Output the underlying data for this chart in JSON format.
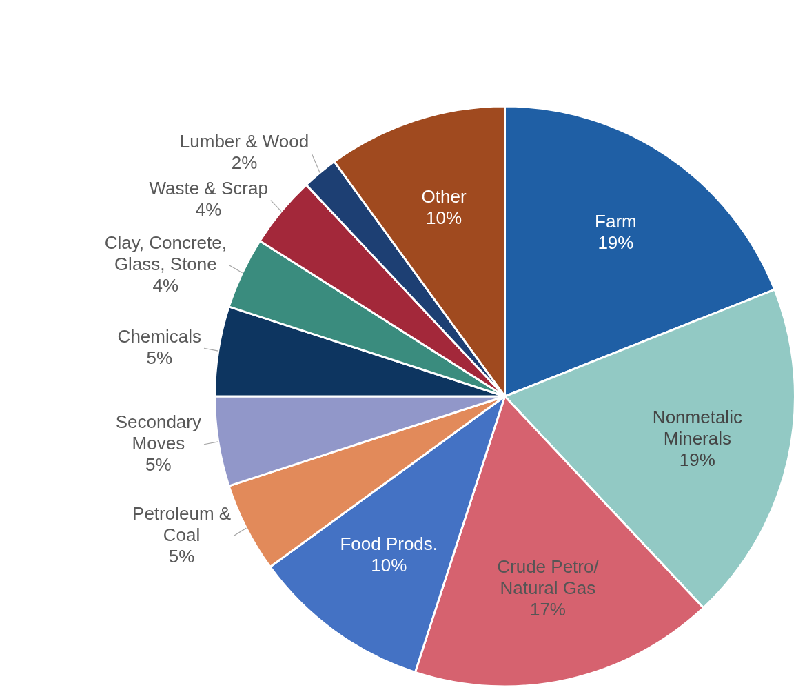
{
  "chart_data": {
    "type": "pie",
    "categories": [
      "Farm",
      "Nonmetalic Minerals",
      "Crude Petro/Natural Gas",
      "Food Prods.",
      "Petroleum & Coal",
      "Secondary Moves",
      "Chemicals",
      "Clay, Concrete, Glass, Stone",
      "Waste & Scrap",
      "Lumber & Wood",
      "Other"
    ],
    "values": [
      19,
      19,
      17,
      10,
      5,
      5,
      5,
      4,
      4,
      2,
      10
    ],
    "value_labels": [
      "19%",
      "19%",
      "17%",
      "10%",
      "5%",
      "5%",
      "5%",
      "4%",
      "4%",
      "2%",
      "10%"
    ],
    "colors": [
      "#1f5fa5",
      "#92c9c4",
      "#d6626f",
      "#4472c4",
      "#e28a5a",
      "#9197c9",
      "#0d3560",
      "#3a8c7e",
      "#a3283a",
      "#1d3f73",
      "#a04a1f"
    ],
    "legend": false
  }
}
